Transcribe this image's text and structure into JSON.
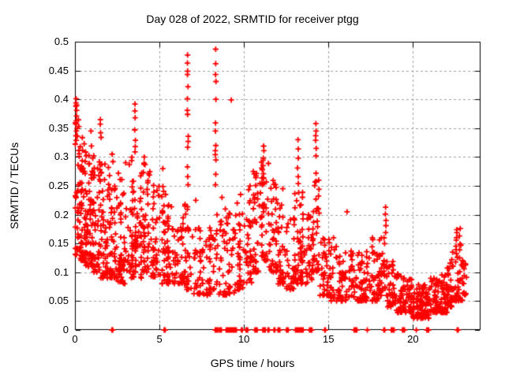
{
  "chart_data": {
    "type": "scatter",
    "title": "Day 028 of 2022, SRMTID for receiver ptgg",
    "xlabel": "GPS time / hours",
    "ylabel": "SRMTID / TECUs",
    "xlim": [
      0,
      24
    ],
    "ylim": [
      0,
      0.5
    ],
    "xticks": [
      0,
      5,
      10,
      15,
      20
    ],
    "yticks": [
      0,
      0.05,
      0.1,
      0.15,
      0.2,
      0.25,
      0.3,
      0.35,
      0.4,
      0.45,
      0.5
    ],
    "xtick_labels": [
      "0",
      "5",
      "10",
      "15",
      "20"
    ],
    "ytick_labels": [
      "0",
      "0.05",
      "0.1",
      "0.15",
      "0.2",
      "0.25",
      "0.3",
      "0.35",
      "0.4",
      "0.45",
      "0.5"
    ],
    "grid": true,
    "legend": "none",
    "marker": "plus",
    "marker_color": "#ff0000",
    "grid_color": "#a0a0a0",
    "border_color": "#000000",
    "background": "#ffffff",
    "series_name": "SRMTID",
    "point_distribution": {
      "description": "Dense scatter of + markers; per-bin envelopes [x_start_h, x_end_h, count, y_min_TECU, y_max_TECU], vertical spike streaks, and runs of points at exactly y=0 along the x-axis",
      "bins": [
        [
          0.0,
          0.3,
          45,
          0.13,
          0.4
        ],
        [
          0.3,
          0.6,
          40,
          0.12,
          0.35
        ],
        [
          0.6,
          1.0,
          60,
          0.11,
          0.33
        ],
        [
          1.0,
          1.5,
          60,
          0.1,
          0.31
        ],
        [
          1.5,
          2.0,
          55,
          0.09,
          0.29
        ],
        [
          2.0,
          2.5,
          50,
          0.09,
          0.27
        ],
        [
          2.5,
          3.0,
          48,
          0.08,
          0.3
        ],
        [
          3.0,
          3.5,
          45,
          0.09,
          0.3
        ],
        [
          3.5,
          4.0,
          45,
          0.09,
          0.28
        ],
        [
          4.0,
          4.5,
          42,
          0.1,
          0.29
        ],
        [
          4.5,
          5.0,
          40,
          0.09,
          0.26
        ],
        [
          5.0,
          5.5,
          40,
          0.08,
          0.25
        ],
        [
          5.5,
          6.0,
          36,
          0.08,
          0.24
        ],
        [
          6.0,
          6.5,
          30,
          0.08,
          0.21
        ],
        [
          6.5,
          7.0,
          30,
          0.07,
          0.22
        ],
        [
          7.0,
          7.5,
          28,
          0.06,
          0.19
        ],
        [
          7.5,
          8.0,
          28,
          0.06,
          0.18
        ],
        [
          8.0,
          8.5,
          25,
          0.07,
          0.2
        ],
        [
          8.5,
          9.0,
          28,
          0.06,
          0.2
        ],
        [
          9.0,
          9.5,
          28,
          0.06,
          0.21
        ],
        [
          9.5,
          10.0,
          30,
          0.07,
          0.22
        ],
        [
          10.0,
          10.5,
          34,
          0.08,
          0.25
        ],
        [
          10.5,
          11.0,
          36,
          0.1,
          0.28
        ],
        [
          11.0,
          11.5,
          40,
          0.12,
          0.3
        ],
        [
          11.5,
          12.0,
          36,
          0.1,
          0.26
        ],
        [
          12.0,
          12.5,
          34,
          0.08,
          0.22
        ],
        [
          12.5,
          13.0,
          30,
          0.07,
          0.2
        ],
        [
          13.0,
          13.5,
          55,
          0.08,
          0.24
        ],
        [
          13.5,
          14.0,
          30,
          0.08,
          0.2
        ],
        [
          14.0,
          14.5,
          36,
          0.1,
          0.26
        ],
        [
          14.5,
          15.0,
          30,
          0.06,
          0.16
        ],
        [
          15.0,
          15.5,
          30,
          0.05,
          0.16
        ],
        [
          15.5,
          16.0,
          30,
          0.05,
          0.13
        ],
        [
          16.0,
          16.5,
          30,
          0.05,
          0.14
        ],
        [
          16.5,
          17.0,
          30,
          0.05,
          0.14
        ],
        [
          17.0,
          17.5,
          30,
          0.05,
          0.15
        ],
        [
          17.5,
          18.0,
          34,
          0.05,
          0.16
        ],
        [
          18.0,
          18.5,
          34,
          0.06,
          0.16
        ],
        [
          18.5,
          19.0,
          36,
          0.04,
          0.12
        ],
        [
          19.0,
          19.5,
          36,
          0.03,
          0.1
        ],
        [
          19.5,
          20.0,
          42,
          0.03,
          0.09
        ],
        [
          20.0,
          20.5,
          48,
          0.02,
          0.08
        ],
        [
          20.5,
          21.0,
          48,
          0.02,
          0.08
        ],
        [
          21.0,
          21.5,
          46,
          0.03,
          0.09
        ],
        [
          21.5,
          22.0,
          46,
          0.03,
          0.1
        ],
        [
          22.0,
          22.5,
          40,
          0.04,
          0.12
        ],
        [
          22.5,
          23.0,
          38,
          0.05,
          0.15
        ],
        [
          23.0,
          23.2,
          10,
          0.06,
          0.12
        ]
      ],
      "spikes": [
        {
          "x": 0.08,
          "ys": [
            0.401,
            0.39,
            0.381,
            0.371,
            0.363,
            0.357,
            0.345,
            0.337,
            0.329
          ]
        },
        {
          "x": 1.52,
          "ys": [
            0.365,
            0.357,
            0.342,
            0.334
          ]
        },
        {
          "x": 3.55,
          "ys": [
            0.392,
            0.38,
            0.368,
            0.347,
            0.329,
            0.318,
            0.309
          ]
        },
        {
          "x": 6.68,
          "ys": [
            0.477,
            0.463,
            0.449,
            0.443,
            0.422,
            0.401,
            0.381,
            0.374,
            0.336,
            0.327,
            0.317,
            0.283,
            0.266,
            0.252
          ]
        },
        {
          "x": 8.33,
          "ys": [
            0.487,
            0.462,
            0.443,
            0.431,
            0.4,
            0.359,
            0.345,
            0.32,
            0.311,
            0.304,
            0.295,
            0.27,
            0.252
          ]
        },
        {
          "x": 11.15,
          "ys": [
            0.319,
            0.311,
            0.298,
            0.285,
            0.271,
            0.264,
            0.254
          ]
        },
        {
          "x": 13.2,
          "ys": [
            0.33,
            0.314,
            0.298,
            0.281,
            0.266,
            0.254
          ]
        },
        {
          "x": 14.25,
          "ys": [
            0.358,
            0.345,
            0.337,
            0.329,
            0.315,
            0.302,
            0.272,
            0.258,
            0.227,
            0.206
          ]
        },
        {
          "x": 18.38,
          "ys": [
            0.213,
            0.201,
            0.19,
            0.181,
            0.169
          ]
        },
        {
          "x": 22.58,
          "ys": [
            0.174,
            0.169,
            0.16,
            0.156
          ]
        },
        {
          "x": 22.78,
          "ys": [
            0.176,
            0.163,
            0.139,
            0.125
          ]
        }
      ],
      "zero_runs": [
        [
          2.18,
          2.24,
          2
        ],
        [
          5.28,
          5.34,
          2
        ],
        [
          8.3,
          8.45,
          4
        ],
        [
          8.55,
          8.66,
          3
        ],
        [
          8.95,
          9.55,
          20
        ],
        [
          9.85,
          9.9,
          2
        ],
        [
          10.12,
          10.22,
          4
        ],
        [
          10.65,
          10.78,
          4
        ],
        [
          11.12,
          11.26,
          4
        ],
        [
          11.42,
          11.48,
          2
        ],
        [
          11.78,
          11.83,
          2
        ],
        [
          12.02,
          12.12,
          3
        ],
        [
          12.52,
          12.62,
          3
        ],
        [
          13.05,
          13.5,
          16
        ],
        [
          13.88,
          14.02,
          5
        ],
        [
          14.78,
          14.82,
          2
        ],
        [
          16.52,
          16.68,
          5
        ],
        [
          17.28,
          17.32,
          1
        ],
        [
          18.28,
          18.33,
          2
        ],
        [
          18.72,
          18.88,
          4
        ],
        [
          19.38,
          19.5,
          4
        ],
        [
          20.18,
          20.22,
          1
        ],
        [
          20.82,
          20.93,
          3
        ],
        [
          22.62,
          22.68,
          2
        ]
      ],
      "extra_points": [
        [
          9.25,
          0.399
        ],
        [
          8.7,
          0.23
        ],
        [
          8.9,
          0.21
        ],
        [
          9.6,
          0.22
        ],
        [
          9.8,
          0.235
        ],
        [
          10.55,
          0.275
        ],
        [
          12.3,
          0.245
        ],
        [
          2.2,
          0.305
        ],
        [
          2.25,
          0.292
        ],
        [
          3.0,
          0.29
        ],
        [
          0.95,
          0.345
        ],
        [
          4.1,
          0.3
        ],
        [
          4.15,
          0.287
        ],
        [
          5.2,
          0.28
        ],
        [
          7.15,
          0.225
        ],
        [
          16.1,
          0.205
        ],
        [
          17.6,
          0.16
        ],
        [
          15.3,
          0.16
        ],
        [
          22.35,
          0.135
        ],
        [
          22.3,
          0.122
        ],
        [
          23.1,
          0.115
        ]
      ]
    }
  }
}
